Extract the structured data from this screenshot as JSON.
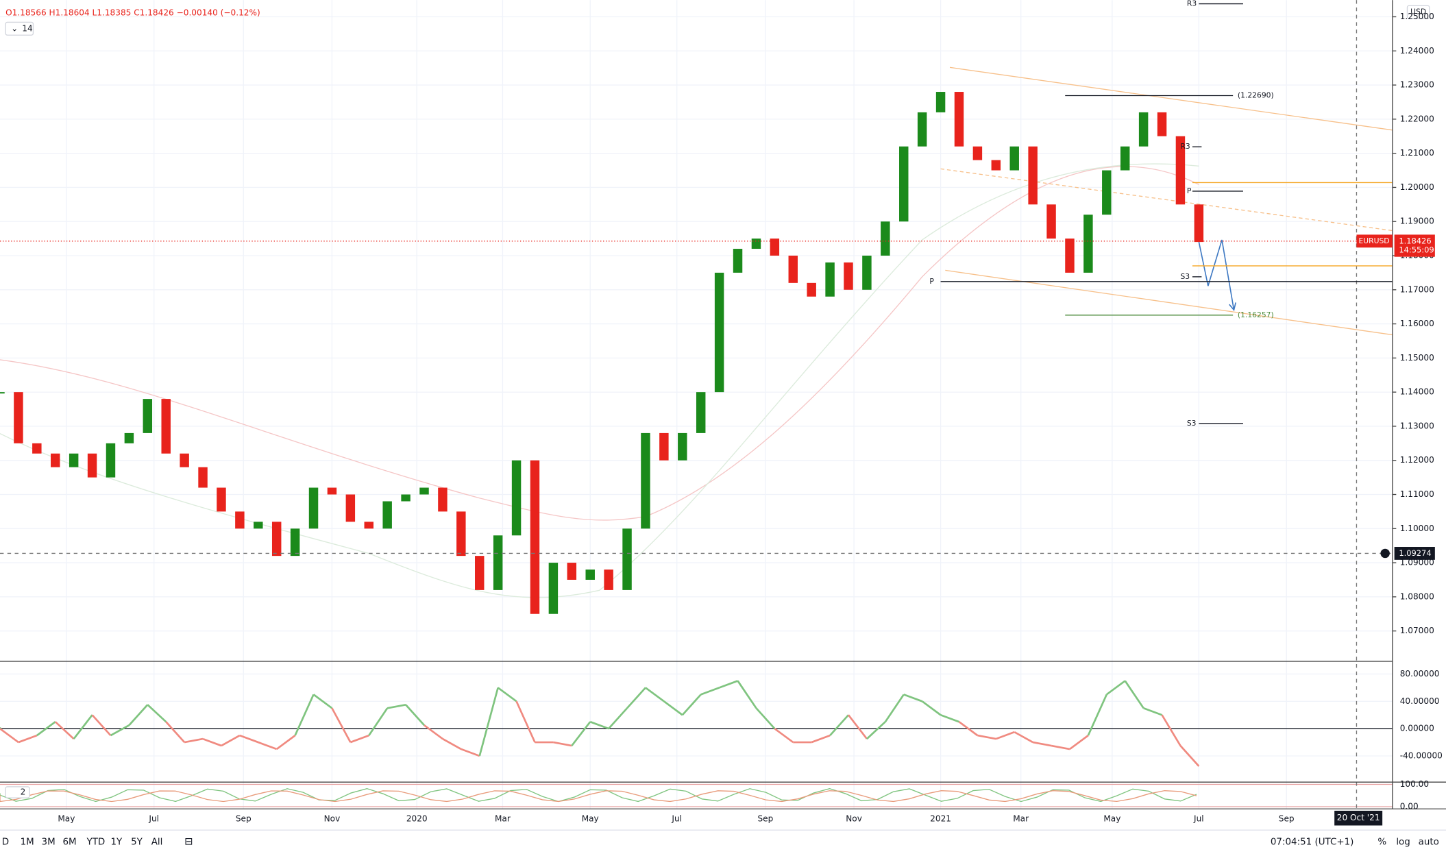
{
  "legend": {
    "ohlc": "O1.18566 H1.18604 L1.18385 C1.18426 −0.00140 (−0.12%)",
    "length": "14"
  },
  "price_pane": {
    "ylim": [
      1.0611,
      1.2549
    ],
    "currency": "USD",
    "yticks": [
      {
        "value": 1.25,
        "label": "1.25000"
      },
      {
        "value": 1.24,
        "label": "1.24000"
      },
      {
        "value": 1.23,
        "label": "1.23000"
      },
      {
        "value": 1.22,
        "label": "1.22000"
      },
      {
        "value": 1.21,
        "label": "1.21000"
      },
      {
        "value": 1.2,
        "label": "1.20000"
      },
      {
        "value": 1.19,
        "label": "1.19000"
      },
      {
        "value": 1.18,
        "label": "1.18000"
      },
      {
        "value": 1.17,
        "label": "1.17000"
      },
      {
        "value": 1.16,
        "label": "1.16000"
      },
      {
        "value": 1.15,
        "label": "1.15000"
      },
      {
        "value": 1.14,
        "label": "1.14000"
      },
      {
        "value": 1.13,
        "label": "1.13000"
      },
      {
        "value": 1.12,
        "label": "1.12000"
      },
      {
        "value": 1.11,
        "label": "1.11000"
      },
      {
        "value": 1.1,
        "label": "1.10000"
      },
      {
        "value": 1.09,
        "label": "1.09000"
      },
      {
        "value": 1.08,
        "label": "1.08000"
      },
      {
        "value": 1.07,
        "label": "1.07000"
      }
    ],
    "closes": [
      1.14,
      1.125,
      1.122,
      1.118,
      1.122,
      1.115,
      1.125,
      1.128,
      1.138,
      1.122,
      1.118,
      1.112,
      1.105,
      1.1,
      1.102,
      1.092,
      1.1,
      1.112,
      1.11,
      1.102,
      1.1,
      1.108,
      1.11,
      1.112,
      1.105,
      1.092,
      1.082,
      1.098,
      1.12,
      1.075,
      1.09,
      1.085,
      1.088,
      1.082,
      1.1,
      1.128,
      1.12,
      1.128,
      1.14,
      1.175,
      1.182,
      1.185,
      1.18,
      1.172,
      1.168,
      1.178,
      1.17,
      1.18,
      1.19,
      1.212,
      1.222,
      1.228,
      1.212,
      1.208,
      1.205,
      1.212,
      1.195,
      1.185,
      1.175,
      1.192,
      1.205,
      1.212,
      1.222,
      1.215,
      1.195,
      1.184
    ],
    "up_color": "#1b8a1b",
    "down_color": "#e8231c",
    "levels": [
      {
        "label": "R3",
        "value": 1.2538
      },
      {
        "label": "R3",
        "value": 1.2119
      },
      {
        "label": "P",
        "value": 1.1989
      },
      {
        "label": "S3",
        "value": 1.1738
      },
      {
        "label": "P",
        "value": 1.1724
      },
      {
        "label": "S3",
        "value": 1.1308
      },
      {
        "label": "(1.22690)",
        "value": 1.2269
      },
      {
        "label": "(1.16257)",
        "value": 1.16257
      }
    ],
    "orange_levels": [
      1.2014,
      1.177
    ],
    "last_price": {
      "symbol": "EURUSD",
      "value": 1.18426,
      "label": "1.18426",
      "countdown": "14:55:09"
    },
    "crosshair": {
      "value": 1.09274,
      "label": "1.09274"
    }
  },
  "oscillator_pane": {
    "ylim": [
      -78.4,
      98.6
    ],
    "yticks": [
      {
        "value": 80,
        "label": "80.00000"
      },
      {
        "value": 40,
        "label": "40.00000"
      },
      {
        "value": 0,
        "label": "0.00000"
      },
      {
        "value": -40,
        "label": "-40.00000"
      }
    ],
    "values": [
      0,
      -20,
      -10,
      10,
      -15,
      20,
      -10,
      5,
      35,
      10,
      -20,
      -15,
      -25,
      -10,
      -20,
      -30,
      -10,
      50,
      30,
      -20,
      -10,
      30,
      35,
      5,
      -15,
      -30,
      -40,
      60,
      40,
      -20,
      -20,
      -25,
      10,
      0,
      30,
      60,
      40,
      20,
      50,
      60,
      70,
      30,
      0,
      -20,
      -20,
      -10,
      20,
      -15,
      10,
      50,
      40,
      20,
      10,
      -10,
      -15,
      -5,
      -20,
      -25,
      -30,
      -10,
      50,
      70,
      30,
      20,
      -25,
      -55
    ],
    "up_color": "#7fc47f",
    "down_color": "#f08a80"
  },
  "lower_pane": {
    "length": "2",
    "ylim": [
      -10,
      110
    ],
    "yticks": [
      {
        "value": 100,
        "label": "100.00"
      },
      {
        "value": 0,
        "label": "0.00"
      }
    ]
  },
  "time_axis": {
    "labels": [
      "May",
      "Jul",
      "Sep",
      "Nov",
      "2020",
      "Mar",
      "May",
      "Jul",
      "Sep",
      "Nov",
      "2021",
      "Mar",
      "May",
      "Jul",
      "Sep"
    ],
    "cursor_date": "20 Oct '21"
  },
  "toolbar": {
    "ranges": [
      "D",
      "1M",
      "3M",
      "6M",
      "YTD",
      "1Y",
      "5Y",
      "All"
    ],
    "clock": "07:04:51 (UTC+1)",
    "options": [
      "%",
      "log",
      "auto"
    ]
  }
}
